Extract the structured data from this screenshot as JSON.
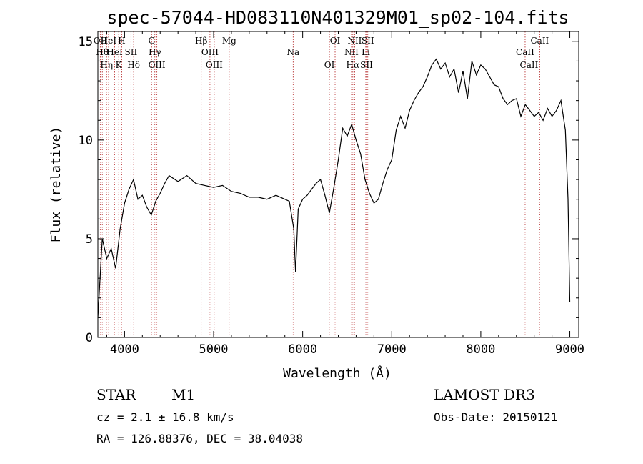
{
  "chart_data": {
    "type": "line",
    "title": "spec-57044-HD083110N401329M01_sp02-104.fits",
    "xlabel": "Wavelength (Å)",
    "ylabel": "Flux (relative)",
    "xlim": [
      3700,
      9100
    ],
    "ylim": [
      0,
      15.5
    ],
    "x_ticks": [
      4000,
      5000,
      6000,
      7000,
      8000,
      9000
    ],
    "x_tick_labels": [
      "4000",
      "5000",
      "6000",
      "7000",
      "8000",
      "9000"
    ],
    "y_ticks": [
      0,
      5,
      10,
      15
    ],
    "y_tick_labels": [
      "0",
      "5",
      "10",
      "15"
    ],
    "grid": false,
    "legend": "none",
    "series": [
      {
        "color": "#000000",
        "x": [
          3700,
          3750,
          3800,
          3850,
          3900,
          3950,
          4000,
          4050,
          4100,
          4150,
          4200,
          4250,
          4300,
          4350,
          4400,
          4450,
          4500,
          4600,
          4700,
          4800,
          4900,
          5000,
          5100,
          5200,
          5300,
          5400,
          5500,
          5600,
          5700,
          5800,
          5850,
          5900,
          5920,
          5950,
          6000,
          6050,
          6100,
          6150,
          6200,
          6250,
          6300,
          6350,
          6400,
          6450,
          6500,
          6550,
          6600,
          6650,
          6700,
          6750,
          6800,
          6850,
          6900,
          6950,
          7000,
          7050,
          7100,
          7150,
          7200,
          7250,
          7300,
          7350,
          7400,
          7450,
          7500,
          7550,
          7600,
          7650,
          7700,
          7750,
          7800,
          7850,
          7900,
          7950,
          8000,
          8050,
          8100,
          8150,
          8200,
          8250,
          8300,
          8350,
          8400,
          8450,
          8500,
          8550,
          8600,
          8650,
          8700,
          8750,
          8800,
          8850,
          8900,
          8950,
          8980,
          9000
        ],
        "y": [
          1.0,
          5.0,
          4.0,
          4.5,
          3.5,
          5.5,
          6.8,
          7.5,
          8.0,
          7.0,
          7.2,
          6.6,
          6.2,
          6.9,
          7.3,
          7.8,
          8.2,
          7.9,
          8.2,
          7.8,
          7.7,
          7.6,
          7.7,
          7.4,
          7.3,
          7.1,
          7.1,
          7.0,
          7.2,
          7.0,
          6.9,
          5.5,
          3.3,
          6.5,
          7.0,
          7.2,
          7.5,
          7.8,
          8.0,
          7.2,
          6.3,
          7.6,
          9.0,
          10.6,
          10.2,
          10.8,
          10.0,
          9.3,
          8.0,
          7.3,
          6.8,
          7.0,
          7.8,
          8.5,
          9.0,
          10.5,
          11.2,
          10.6,
          11.5,
          12.0,
          12.4,
          12.7,
          13.2,
          13.8,
          14.1,
          13.6,
          13.9,
          13.2,
          13.6,
          12.4,
          13.5,
          12.1,
          14.0,
          13.3,
          13.8,
          13.6,
          13.2,
          12.8,
          12.7,
          12.1,
          11.8,
          12.0,
          12.1,
          11.2,
          11.8,
          11.5,
          11.2,
          11.4,
          11.0,
          11.6,
          11.2,
          11.5,
          12.0,
          10.5,
          7.0,
          1.8
        ]
      }
    ],
    "line_markers": [
      {
        "wavelength": 3727,
        "label": "OII"
      },
      {
        "wavelength": 3750,
        "label": "Hθ"
      },
      {
        "wavelength": 3798,
        "label": "Hη"
      },
      {
        "wavelength": 3820,
        "label": "HeI"
      },
      {
        "wavelength": 3889,
        "label": "HeI"
      },
      {
        "wavelength": 3934,
        "label": "K"
      },
      {
        "wavelength": 3969,
        "label": "H"
      },
      {
        "wavelength": 4072,
        "label": "SII"
      },
      {
        "wavelength": 4102,
        "label": "Hδ"
      },
      {
        "wavelength": 4304,
        "label": "G"
      },
      {
        "wavelength": 4340,
        "label": "Hγ"
      },
      {
        "wavelength": 4363,
        "label": "OIII"
      },
      {
        "wavelength": 4861,
        "label": "Hβ"
      },
      {
        "wavelength": 4959,
        "label": "OIII"
      },
      {
        "wavelength": 5007,
        "label": "OIII"
      },
      {
        "wavelength": 5175,
        "label": "Mg"
      },
      {
        "wavelength": 5893,
        "label": "Na"
      },
      {
        "wavelength": 6300,
        "label": "OI"
      },
      {
        "wavelength": 6364,
        "label": "OI"
      },
      {
        "wavelength": 6548,
        "label": "NII"
      },
      {
        "wavelength": 6563,
        "label": "Hα"
      },
      {
        "wavelength": 6584,
        "label": "NII"
      },
      {
        "wavelength": 6708,
        "label": "Li"
      },
      {
        "wavelength": 6717,
        "label": "SII"
      },
      {
        "wavelength": 6731,
        "label": "SII"
      },
      {
        "wavelength": 8498,
        "label": "CaII"
      },
      {
        "wavelength": 8542,
        "label": "CaII"
      },
      {
        "wavelength": 8662,
        "label": "CaII"
      }
    ],
    "marker_color": "#b22222"
  },
  "info": {
    "object_class": "STAR",
    "subclass": "M1",
    "survey": "LAMOST DR3",
    "redshift": "cz = 2.1 ± 16.8 km/s",
    "obs_date": "Obs-Date: 20150121",
    "coords": "RA = 126.88376, DEC =  38.04038"
  }
}
